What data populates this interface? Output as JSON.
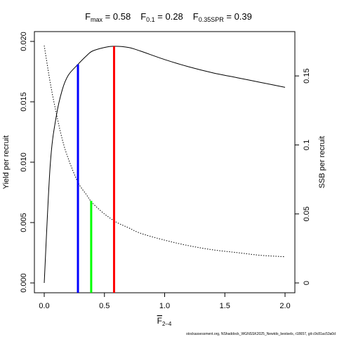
{
  "title": {
    "fmax_label": "F",
    "fmax_sub": "max",
    "fmax_value": " = 0.58",
    "f01_label": "F",
    "f01_sub": "0.1",
    "f01_value": " = 0.28",
    "fspr_label": "F",
    "fspr_sub": "0.35SPR",
    "fspr_value": " = 0.39"
  },
  "footer": "stockassessment.org, NShaddock_WGNSSK2025_Newtdo_bestsels, r18657, git:c9c81ac53a0d",
  "chart_data": {
    "type": "line",
    "x_label_base": "F",
    "x_label_sub": "2–4",
    "ylabel_left": "Yield per recruit",
    "ylabel_right": "SSB per recruit",
    "xlim": [
      0,
      2.0
    ],
    "ylim_left": [
      0,
      0.02
    ],
    "ylim_right": [
      0,
      0.175
    ],
    "grid": false,
    "x_ticks": [
      0,
      0.5,
      1.0,
      1.5,
      2.0
    ],
    "x_tick_labels": [
      "0.0",
      "0.5",
      "1.0",
      "1.5",
      "2.0"
    ],
    "y_left_ticks": [
      0,
      0.005,
      0.01,
      0.015,
      0.02
    ],
    "y_left_tick_labels": [
      "0.000",
      "0.005",
      "0.010",
      "0.015",
      "0.020"
    ],
    "y_right_ticks": [
      0,
      0.05,
      0.1,
      0.15
    ],
    "y_right_tick_labels": [
      "0",
      "0.05",
      "0.1",
      "0.15"
    ],
    "series": [
      {
        "axis": "left",
        "style": "solid",
        "color": "#000000",
        "x": [
          0,
          0.05,
          0.1,
          0.15,
          0.2,
          0.28,
          0.35,
          0.4,
          0.5,
          0.58,
          0.7,
          0.8,
          1.0,
          1.2,
          1.4,
          1.6,
          1.8,
          2.0
        ],
        "y": [
          0,
          0.0098,
          0.0138,
          0.016,
          0.0172,
          0.0181,
          0.0188,
          0.0192,
          0.0195,
          0.0196,
          0.0195,
          0.0192,
          0.0185,
          0.0179,
          0.0174,
          0.017,
          0.0166,
          0.0162
        ]
      },
      {
        "axis": "right",
        "style": "dotted",
        "color": "#000000",
        "x": [
          0,
          0.05,
          0.1,
          0.15,
          0.2,
          0.28,
          0.35,
          0.4,
          0.5,
          0.6,
          0.7,
          0.8,
          1.0,
          1.2,
          1.4,
          1.6,
          1.8,
          2.0
        ],
        "y": [
          0.172,
          0.145,
          0.123,
          0.104,
          0.09,
          0.073,
          0.064,
          0.058,
          0.05,
          0.044,
          0.04,
          0.036,
          0.031,
          0.027,
          0.024,
          0.022,
          0.02,
          0.019
        ]
      }
    ],
    "reference_lines": [
      {
        "name": "F0.1",
        "x": 0.28,
        "y_top": 0.0181,
        "color": "#0000ff"
      },
      {
        "name": "F0.35SPR",
        "x": 0.39,
        "y_top": 0.0068,
        "color": "#00ff00"
      },
      {
        "name": "Fmax",
        "x": 0.58,
        "y_top": 0.0196,
        "color": "#ff0000"
      }
    ]
  }
}
